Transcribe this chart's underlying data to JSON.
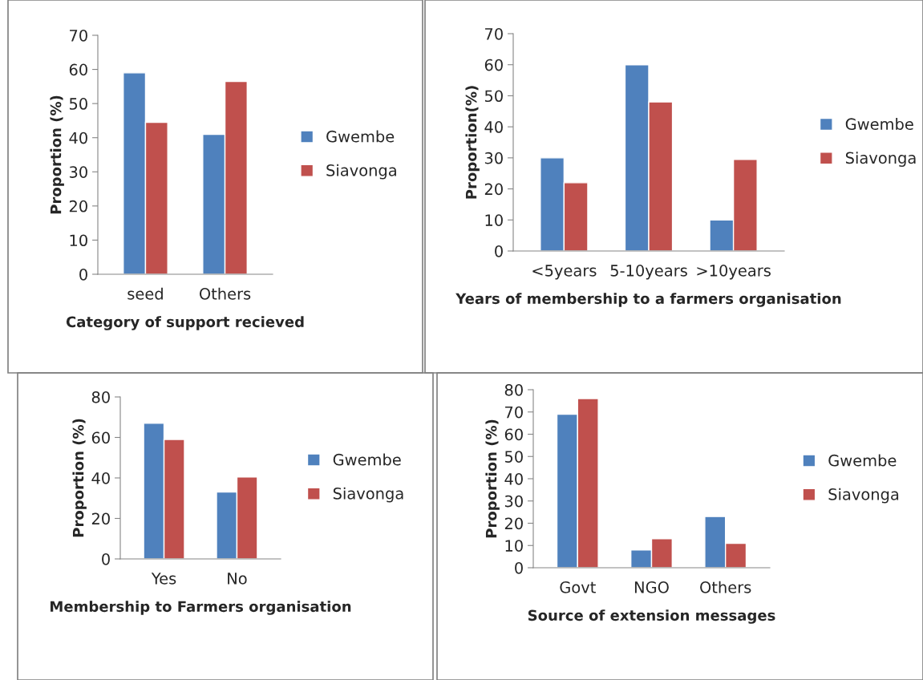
{
  "chart_data": [
    {
      "type": "bar",
      "xlabel": "Category of support recieved",
      "ylabel": "Proportion (%)",
      "categories": [
        "seed",
        "Others"
      ],
      "ylim": [
        0,
        70
      ],
      "yticks": [
        0,
        10,
        20,
        30,
        40,
        50,
        60,
        70
      ],
      "legend": "right",
      "grid": false,
      "series": [
        {
          "name": "Gwembe",
          "color": "#4f81bd",
          "values": [
            59,
            41
          ]
        },
        {
          "name": "Siavonga",
          "color": "#c0504d",
          "values": [
            44.5,
            56.5
          ]
        }
      ]
    },
    {
      "type": "bar",
      "xlabel": "Years of membership to a farmers organisation",
      "ylabel": "Proportion(%)",
      "categories": [
        "<5years",
        "5-10years",
        ">10years"
      ],
      "ylim": [
        0,
        70
      ],
      "yticks": [
        0,
        10,
        20,
        30,
        40,
        50,
        60,
        70
      ],
      "legend": "right",
      "grid": false,
      "series": [
        {
          "name": "Gwembe",
          "color": "#4f81bd",
          "values": [
            30,
            60,
            10
          ]
        },
        {
          "name": "Siavonga",
          "color": "#c0504d",
          "values": [
            22,
            48,
            29.5
          ]
        }
      ]
    },
    {
      "type": "bar",
      "xlabel": "Membership to Farmers organisation",
      "ylabel": "Proportion (%)",
      "categories": [
        "Yes",
        "No"
      ],
      "ylim": [
        0,
        80
      ],
      "yticks": [
        0,
        20,
        40,
        60,
        80
      ],
      "legend": "right",
      "grid": false,
      "series": [
        {
          "name": "Gwembe",
          "color": "#4f81bd",
          "values": [
            67,
            33
          ]
        },
        {
          "name": "Siavonga",
          "color": "#c0504d",
          "values": [
            59,
            40.5
          ]
        }
      ]
    },
    {
      "type": "bar",
      "xlabel": "Source of extension messages",
      "ylabel": "Proportion (%)",
      "categories": [
        "Govt",
        "NGO",
        "Others"
      ],
      "ylim": [
        0,
        80
      ],
      "yticks": [
        0,
        10,
        20,
        30,
        40,
        50,
        60,
        70,
        80
      ],
      "legend": "right",
      "grid": false,
      "series": [
        {
          "name": "Gwembe",
          "color": "#4f81bd",
          "values": [
            69,
            8,
            23
          ]
        },
        {
          "name": "Siavonga",
          "color": "#c0504d",
          "values": [
            76,
            13,
            11
          ]
        }
      ]
    }
  ]
}
